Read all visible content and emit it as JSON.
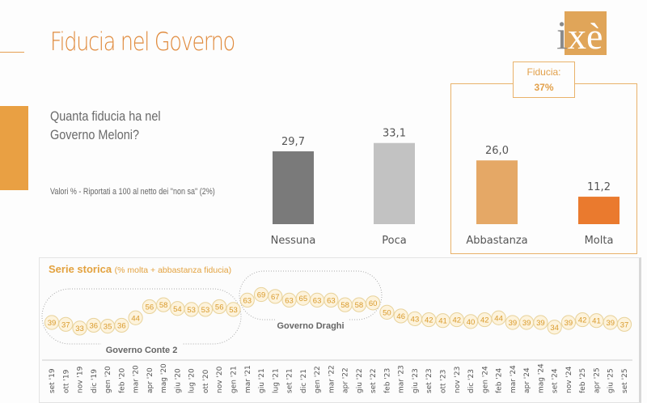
{
  "header": {
    "title": "Fiducia nel Governo",
    "logo_text": "ixè"
  },
  "question": {
    "line1": "Quanta fiducia ha nel",
    "line2": "Governo Meloni?",
    "note": "Valori % - Riportati a 100 al netto dei \"non sa\" (2%)"
  },
  "fiducia_box": {
    "label": "Fiducia:",
    "value": "37%"
  },
  "colors": {
    "accent": "#e08a3c",
    "nessuna": "#7a7a7a",
    "poca": "#c2c2c2",
    "abbastanza": "#e5a866",
    "molta": "#ea7a2e"
  },
  "chart_data": [
    {
      "type": "bar",
      "title": "Quanta fiducia ha nel Governo Meloni?",
      "categories": [
        "Nessuna",
        "Poca",
        "Abbastanza",
        "Molta"
      ],
      "values": [
        29.7,
        33.1,
        26.0,
        11.2
      ],
      "value_labels": [
        "29,7",
        "33,1",
        "26,0",
        "11,2"
      ],
      "ylim": [
        0,
        40
      ]
    },
    {
      "type": "line",
      "title": "Serie storica",
      "subtitle": "(% molta + abbastanza fiducia)",
      "x": [
        "set '19",
        "ott '19",
        "nov '19",
        "dic '19",
        "gen '20",
        "feb '20",
        "mar '20",
        "apr '20",
        "mag '20",
        "giu '20",
        "lug '20",
        "ott '20",
        "nov '20",
        "gen '21",
        "mar '21",
        "giu '21",
        "lug '21",
        "set '21",
        "dic '21",
        "gen '22",
        "mar '22",
        "apr '22",
        "giu '22",
        "set '22",
        "feb '23",
        "mar '23",
        "giu '23",
        "set '23",
        "ott '23",
        "nov '23",
        "dic '23",
        "gen '24",
        "feb '24",
        "mar '24",
        "apr '24",
        "mag '24",
        "set '24",
        "nov '24",
        "feb '25",
        "apr '25",
        "giu '25",
        "set '25"
      ],
      "values": [
        39,
        37,
        33,
        36,
        35,
        36,
        44,
        56,
        58,
        54,
        53,
        53,
        56,
        53,
        63,
        69,
        67,
        63,
        65,
        63,
        63,
        58,
        58,
        60,
        50,
        46,
        43,
        42,
        41,
        42,
        40,
        42,
        44,
        39,
        39,
        39,
        34,
        39,
        42,
        41,
        39,
        37
      ],
      "annotations": [
        {
          "label": "Governo Conte 2",
          "from": 0,
          "to": 13
        },
        {
          "label": "Governo Draghi",
          "from": 14,
          "to": 23
        }
      ],
      "ylim": [
        30,
        70
      ]
    }
  ]
}
